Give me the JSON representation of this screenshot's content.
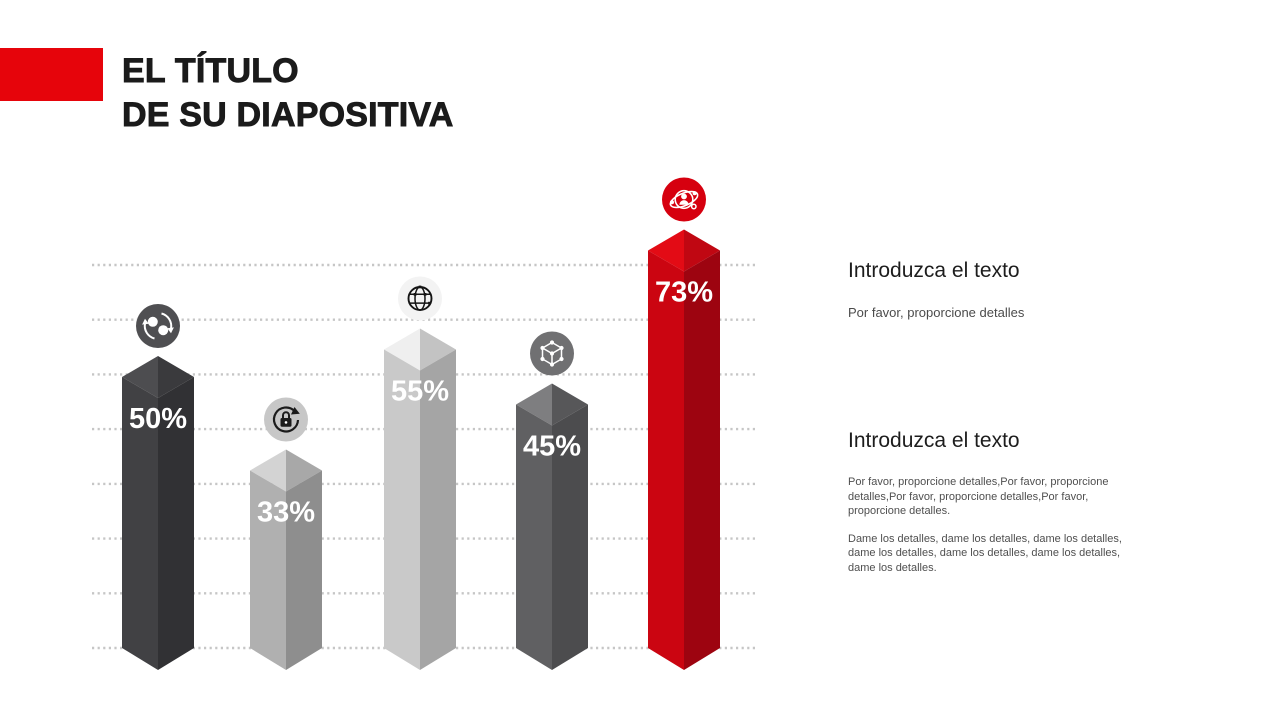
{
  "slide": {
    "title_line1": "EL TÍTULO",
    "title_line2": "DE SU DIAPOSITIVA",
    "accent_color": "#e6040b",
    "background": "#ffffff"
  },
  "chart_data": {
    "type": "bar",
    "title": "",
    "xlabel": "",
    "ylabel": "",
    "unit": "percent",
    "categories": [
      "chat-sync",
      "lock-refresh",
      "globe",
      "network-cube",
      "user-orbit"
    ],
    "values": [
      50,
      33,
      55,
      45,
      73
    ],
    "labels": [
      "50%",
      "33%",
      "55%",
      "45%",
      "73%"
    ],
    "ylim": [
      0,
      100
    ],
    "gridlines": {
      "count": 8,
      "style": "dotted",
      "color": "#c6c6c6"
    },
    "legend": "none",
    "bars": [
      {
        "value": 50,
        "label": "50%",
        "icon": "chat-sync-icon",
        "color_left": "#414144",
        "color_right": "#313134",
        "color_top_left": "#4d4d50",
        "color_top_right": "#3a3a3d",
        "icon_bg": "#4f4f52",
        "icon_fg": "#ffffff"
      },
      {
        "value": 33,
        "label": "33%",
        "icon": "lock-refresh-icon",
        "color_left": "#b0b0b0",
        "color_right": "#8e8e8e",
        "color_top_left": "#d3d3d3",
        "color_top_right": "#a8a8a8",
        "icon_bg": "#c7c7c7",
        "icon_fg": "#1b1b1b"
      },
      {
        "value": 55,
        "label": "55%",
        "icon": "globe-icon",
        "color_left": "#c9c9c9",
        "color_right": "#a5a5a5",
        "color_top_left": "#efefef",
        "color_top_right": "#c3c3c3",
        "icon_bg": "#f3f3f3",
        "icon_fg": "#141414"
      },
      {
        "value": 45,
        "label": "45%",
        "icon": "network-cube-icon",
        "color_left": "#606062",
        "color_right": "#4c4c4e",
        "color_top_left": "#7e7e80",
        "color_top_right": "#575759",
        "icon_bg": "#707072",
        "icon_fg": "#ffffff"
      },
      {
        "value": 73,
        "label": "73%",
        "icon": "user-orbit-icon",
        "color_left": "#cb0511",
        "color_right": "#9d0410",
        "color_top_left": "#e30b15",
        "color_top_right": "#c00712",
        "icon_bg": "#d6000f",
        "icon_fg": "#ffffff"
      }
    ],
    "label_color": "#ffffff"
  },
  "panels": [
    {
      "heading": "Introduzca el texto",
      "paragraphs": [
        "Por favor, proporcione detalles"
      ]
    },
    {
      "heading": "Introduzca el texto",
      "paragraphs": [
        "Por favor, proporcione detalles,Por favor, proporcione detalles,Por favor, proporcione detalles,Por favor, proporcione detalles.",
        "Dame los detalles, dame los detalles, dame los detalles, dame los detalles, dame los detalles, dame los detalles, dame los detalles."
      ]
    }
  ]
}
